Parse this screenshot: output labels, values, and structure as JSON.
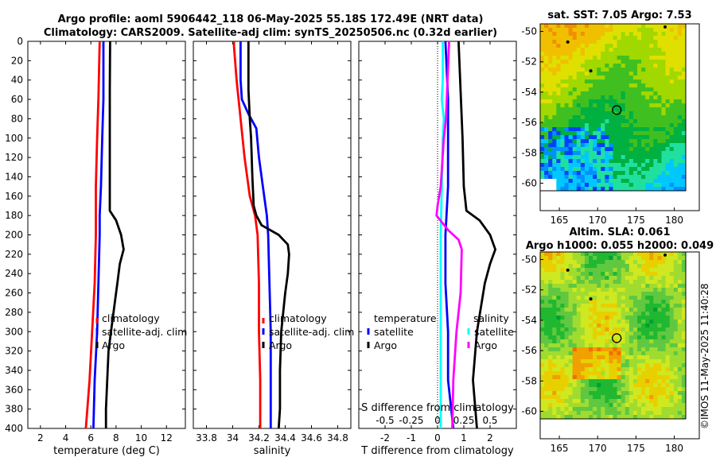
{
  "title": {
    "line1": "Argo profile: aoml 5906442_118 06-May-2025 55.18S 172.49E (NRT data)",
    "line2": "Climatology: CARS2009. Satellite-adj clim: synTS_20250506.nc (0.32d earlier)"
  },
  "credit": "©IMOS 11-May-2025 11:40:28",
  "colors": {
    "climatology": "#ff0000",
    "satellite": "#0000ff",
    "argo": "#000000",
    "magenta": "#ff00ff",
    "cyan": "#00ffff"
  },
  "depth_axis": {
    "min": 0,
    "max": 400,
    "ticks": [
      0,
      20,
      40,
      60,
      80,
      100,
      120,
      140,
      160,
      180,
      200,
      220,
      240,
      260,
      280,
      300,
      320,
      340,
      360,
      380,
      400
    ]
  },
  "chart_data": [
    {
      "type": "line",
      "id": "temperature",
      "xlabel": "temperature (deg C)",
      "xlim": [
        1,
        13.5
      ],
      "xticks": [
        2,
        4,
        6,
        8,
        10,
        12
      ],
      "ylim": [
        400,
        0
      ],
      "legend": [
        "climatology",
        "satellite-adj. clim",
        "Argo"
      ],
      "series": [
        {
          "name": "climatology",
          "color": "#ff0000",
          "depth": [
            0,
            60,
            100,
            150,
            180,
            200,
            250,
            300,
            350,
            400
          ],
          "values": [
            6.7,
            6.6,
            6.5,
            6.4,
            6.4,
            6.4,
            6.3,
            6.1,
            5.9,
            5.6
          ]
        },
        {
          "name": "satellite-adj. clim",
          "color": "#0000ff",
          "depth": [
            0,
            60,
            100,
            150,
            180,
            200,
            250,
            300,
            350,
            400
          ],
          "values": [
            7.0,
            7.0,
            6.9,
            6.8,
            6.7,
            6.7,
            6.6,
            6.5,
            6.3,
            6.2
          ]
        },
        {
          "name": "Argo",
          "color": "#000000",
          "depth": [
            0,
            50,
            100,
            150,
            175,
            185,
            200,
            215,
            230,
            250,
            280,
            300,
            320,
            350,
            380,
            400
          ],
          "values": [
            7.53,
            7.5,
            7.5,
            7.5,
            7.5,
            8.0,
            8.4,
            8.6,
            8.3,
            8.1,
            7.8,
            7.6,
            7.4,
            7.3,
            7.2,
            7.2
          ]
        }
      ]
    },
    {
      "type": "line",
      "id": "salinity",
      "xlabel": "salinity",
      "xlim": [
        33.7,
        34.9
      ],
      "xticks": [
        33.8,
        34,
        34.2,
        34.4,
        34.6,
        34.8
      ],
      "xtick_labels": [
        "33.8",
        "34",
        "34.2",
        "34.4",
        "34.6",
        "34.8"
      ],
      "ylim": [
        400,
        0
      ],
      "legend": [
        "climatology",
        "satellite-adj. clim",
        "Argo"
      ],
      "series": [
        {
          "name": "climatology",
          "color": "#ff0000",
          "depth": [
            0,
            5,
            40,
            80,
            120,
            160,
            180,
            200,
            250,
            300,
            350,
            400
          ],
          "values": [
            34.01,
            34.01,
            34.03,
            34.06,
            34.09,
            34.13,
            34.17,
            34.19,
            34.2,
            34.2,
            34.21,
            34.21
          ]
        },
        {
          "name": "satellite-adj. clim",
          "color": "#0000ff",
          "depth": [
            0,
            40,
            60,
            75,
            90,
            120,
            150,
            180,
            200,
            250,
            300,
            350,
            400
          ],
          "values": [
            34.06,
            34.06,
            34.07,
            34.12,
            34.18,
            34.2,
            34.23,
            34.26,
            34.27,
            34.28,
            34.29,
            34.29,
            34.29
          ]
        },
        {
          "name": "Argo",
          "color": "#000000",
          "depth": [
            0,
            50,
            80,
            100,
            140,
            170,
            180,
            190,
            200,
            210,
            220,
            240,
            260,
            300,
            340,
            380,
            400
          ],
          "values": [
            34.12,
            34.12,
            34.13,
            34.14,
            34.15,
            34.16,
            34.18,
            34.22,
            34.35,
            34.42,
            34.43,
            34.42,
            34.4,
            34.37,
            34.36,
            34.36,
            34.35
          ]
        }
      ]
    },
    {
      "type": "line",
      "id": "difference",
      "xlabel": "T difference from climatology",
      "xlim": [
        -3,
        3
      ],
      "xticks": [
        -2,
        -1,
        0,
        1,
        2
      ],
      "top_label": "S difference from climatology",
      "top_xticks": [
        -0.5,
        -0.25,
        0,
        0.25,
        0.5
      ],
      "top_xtick_labels": [
        "-0.5",
        "-0.25",
        "0",
        "0.25",
        "0.5"
      ],
      "s_scale": 0.25,
      "ylim": [
        400,
        0
      ],
      "legend_left": [
        "temperature",
        "satellite",
        "Argo"
      ],
      "legend_right": [
        "salinity",
        "satellite",
        "Argo"
      ],
      "series": [
        {
          "name": "T satellite",
          "color": "#0000ff",
          "depth": [
            0,
            60,
            100,
            150,
            200,
            250,
            300,
            350,
            400
          ],
          "values": [
            0.3,
            0.4,
            0.4,
            0.4,
            0.3,
            0.3,
            0.4,
            0.4,
            0.6
          ]
        },
        {
          "name": "S satellite",
          "color": "#00ffff",
          "depth": [
            0,
            40,
            60,
            80,
            100,
            150,
            200,
            300,
            400
          ],
          "values": [
            0.05,
            0.05,
            0.04,
            0.06,
            0.05,
            0.04,
            0.03,
            0.03,
            0.03
          ]
        },
        {
          "name": "S Argo",
          "color": "#ff00ff",
          "depth": [
            0,
            80,
            100,
            150,
            170,
            180,
            195,
            205,
            215,
            260,
            300,
            350,
            400
          ],
          "values": [
            0.11,
            0.08,
            0.06,
            0.03,
            0,
            -0.01,
            0.1,
            0.2,
            0.23,
            0.22,
            0.18,
            0.15,
            0.14
          ]
        },
        {
          "name": "T Argo",
          "color": "#000000",
          "depth": [
            0,
            100,
            150,
            175,
            185,
            200,
            215,
            230,
            250,
            300,
            350,
            400
          ],
          "values": [
            0.8,
            0.95,
            1.0,
            1.1,
            1.6,
            2.0,
            2.2,
            2.0,
            1.8,
            1.5,
            1.35,
            1.5
          ]
        }
      ]
    }
  ],
  "maps": {
    "sst": {
      "title": "sat. SST: 7.05 Argo: 7.53",
      "xticks": [
        165,
        170,
        175,
        180
      ],
      "yticks": [
        -50,
        -52,
        -54,
        -56,
        -58,
        -60
      ],
      "xlim": [
        162.5,
        181.5
      ],
      "ylim": [
        -60.5,
        -49.5
      ],
      "float_lon": 172.49,
      "float_lat": -55.18
    },
    "sla": {
      "title1": "Altim. SLA: 0.061",
      "title2": "Argo h1000: 0.055 h2000: 0.049",
      "xticks": [
        165,
        170,
        175,
        180
      ],
      "yticks": [
        -50,
        -52,
        -54,
        -56,
        -58,
        -60
      ],
      "xlim": [
        162.5,
        181.5
      ],
      "ylim": [
        -60.5,
        -49.5
      ],
      "float_lon": 172.49,
      "float_lat": -55.18
    }
  }
}
